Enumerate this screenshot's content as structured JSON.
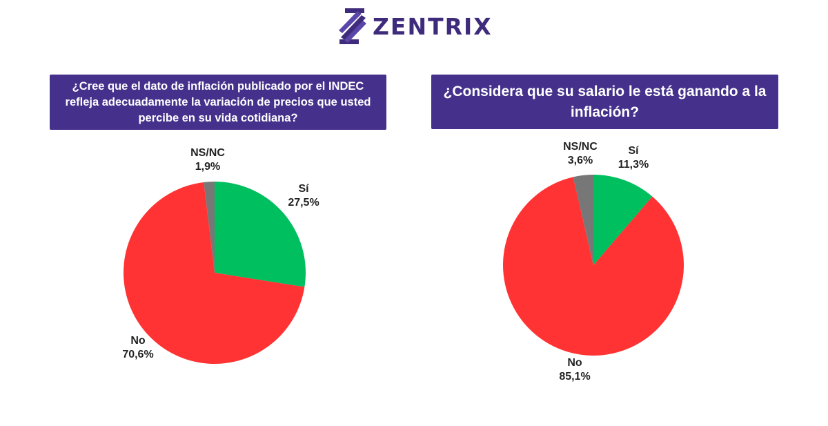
{
  "brand": {
    "name": "ZENTRIX",
    "color": "#3f2b7c",
    "icon": "zentrix-logo-icon"
  },
  "colors": {
    "header_bg": "#45318c",
    "si": "#00bf5f",
    "no": "#ff3333",
    "nsnc": "#777777"
  },
  "chart_data": [
    {
      "type": "pie",
      "title": "¿Cree que el dato de inflación publicado por el INDEC refleja adecuadamente la variación de precios que usted percibe en su vida cotidiana?",
      "slices": [
        {
          "label": "Sí",
          "value": 27.5,
          "display": "27,5%",
          "color": "#00bf5f"
        },
        {
          "label": "No",
          "value": 70.6,
          "display": "70,6%",
          "color": "#ff3333"
        },
        {
          "label": "NS/NC",
          "value": 1.9,
          "display": "1,9%",
          "color": "#777777"
        }
      ]
    },
    {
      "type": "pie",
      "title": "¿Considera que su salario le está ganando a la inflación?",
      "slices": [
        {
          "label": "Sí",
          "value": 11.3,
          "display": "11,3%",
          "color": "#00bf5f"
        },
        {
          "label": "No",
          "value": 85.1,
          "display": "85,1%",
          "color": "#ff3333"
        },
        {
          "label": "NS/NC",
          "value": 3.6,
          "display": "3,6%",
          "color": "#777777"
        }
      ]
    }
  ]
}
